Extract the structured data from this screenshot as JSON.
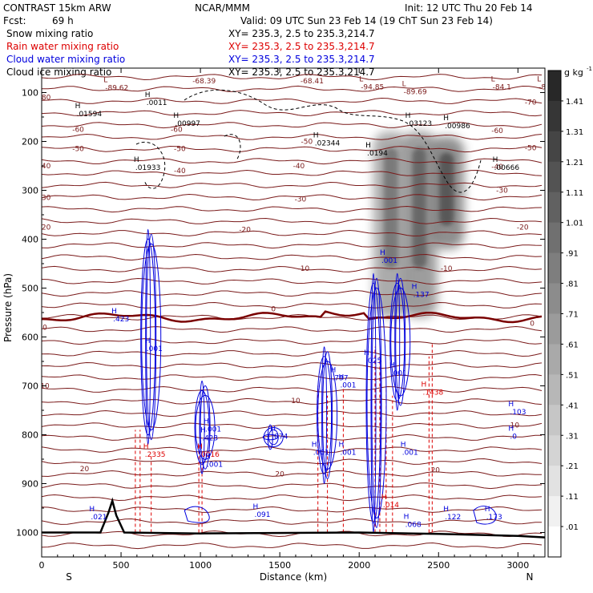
{
  "header": {
    "model": "CONTRAST 15km ARW",
    "org": "NCAR/MMM",
    "init": "Init: 12 UTC Thu 20 Feb 14",
    "fcst_label": "Fcst:",
    "fcst_value": "69 h",
    "valid": "Valid: 09 UTC Sun 23 Feb 14 (19 ChT Sun 23 Feb 14)"
  },
  "legend": [
    {
      "name": "Snow mixing ratio",
      "xy": "XY= 235.3,  2.5 to 235.3,214.7",
      "color": "#000000"
    },
    {
      "name": "Rain water mixing ratio",
      "xy": "XY= 235.3,  2.5 to 235.3,214.7",
      "color": "#dd0000"
    },
    {
      "name": "Cloud water mixing ratio",
      "xy": "XY= 235.3,  2.5 to 235.3,214.7",
      "color": "#0000dd"
    },
    {
      "name": "Cloud ice mixing ratio",
      "xy": "XY= 235.3,  2.5 to 235.3,214.7",
      "color": "#000000"
    }
  ],
  "chart_data": {
    "type": "contour-cross-section",
    "xlabel": "Distance (km)",
    "ylabel": "Pressure (hPa)",
    "xlim": [
      0,
      3170
    ],
    "ylim": [
      1050,
      50
    ],
    "x_ticks": [
      0,
      500,
      1000,
      1500,
      2000,
      2500,
      3000
    ],
    "y_ticks": [
      100,
      200,
      300,
      400,
      500,
      600,
      700,
      800,
      900,
      1000
    ],
    "x_end_labels": {
      "left": "S",
      "right": "N"
    },
    "colorbar": {
      "unit": "g kg",
      "unit_exp": "-1",
      "labels": [
        "1.41",
        "1.31",
        "1.21",
        "1.11",
        "1.01",
        ".91",
        ".81",
        ".71",
        ".61",
        ".51",
        ".41",
        ".31",
        ".21",
        ".11",
        ".01"
      ],
      "levels": [
        1.41,
        1.31,
        1.21,
        1.11,
        1.01,
        0.91,
        0.81,
        0.71,
        0.61,
        0.51,
        0.41,
        0.31,
        0.21,
        0.11,
        0.01
      ]
    },
    "temperature_labels": [
      {
        "t": "-80",
        "x": 20,
        "p": 110
      },
      {
        "t": "-70",
        "x": 3080,
        "p": 120
      },
      {
        "t": "-60",
        "x": 230,
        "p": 175
      },
      {
        "t": "-60",
        "x": 850,
        "p": 175
      },
      {
        "t": "-60",
        "x": 2870,
        "p": 178
      },
      {
        "t": "-50",
        "x": 230,
        "p": 215
      },
      {
        "t": "-50",
        "x": 870,
        "p": 215
      },
      {
        "t": "-50",
        "x": 1670,
        "p": 200
      },
      {
        "t": "-50",
        "x": 3080,
        "p": 213
      },
      {
        "t": "-40",
        "x": 20,
        "p": 250
      },
      {
        "t": "-40",
        "x": 870,
        "p": 260
      },
      {
        "t": "-40",
        "x": 1620,
        "p": 250
      },
      {
        "t": "-40",
        "x": 2870,
        "p": 252
      },
      {
        "t": "-30",
        "x": 20,
        "p": 315
      },
      {
        "t": "-30",
        "x": 1630,
        "p": 318
      },
      {
        "t": "-30",
        "x": 2900,
        "p": 300
      },
      {
        "t": "-20",
        "x": 20,
        "p": 375
      },
      {
        "t": "-20",
        "x": 1280,
        "p": 380
      },
      {
        "t": "-20",
        "x": 3030,
        "p": 375
      },
      {
        "t": "-10",
        "x": 1650,
        "p": 460
      },
      {
        "t": "-10",
        "x": 2550,
        "p": 460
      },
      {
        "t": "0",
        "x": 20,
        "p": 580
      },
      {
        "t": "0",
        "x": 1460,
        "p": 543
      },
      {
        "t": "0",
        "x": 3090,
        "p": 572
      },
      {
        "t": "10",
        "x": 20,
        "p": 700
      },
      {
        "t": "10",
        "x": 1600,
        "p": 730
      },
      {
        "t": "10",
        "x": 2980,
        "p": 780
      },
      {
        "t": "20",
        "x": 270,
        "p": 870
      },
      {
        "t": "20",
        "x": 1500,
        "p": 880
      },
      {
        "t": "20",
        "x": 2480,
        "p": 872
      }
    ],
    "extrema_labels": [
      {
        "kind": "L",
        "value": "-89.62",
        "x": 400,
        "p": 92
      },
      {
        "kind": "",
        "value": "-68.39",
        "x": 950,
        "p": 78
      },
      {
        "kind": "",
        "value": "-68.41",
        "x": 1630,
        "p": 78
      },
      {
        "kind": "L",
        "value": "-94.85",
        "x": 2010,
        "p": 90
      },
      {
        "kind": "L",
        "value": "-89.69",
        "x": 2280,
        "p": 100
      },
      {
        "kind": "L",
        "value": "-84.1",
        "x": 2840,
        "p": 90
      },
      {
        "kind": "L",
        "value": "-84.0",
        "x": 3130,
        "p": 90
      },
      {
        "kind": "H",
        "value": ".0011",
        "x": 660,
        "p": 122
      },
      {
        "kind": "H",
        "value": ".01594",
        "x": 220,
        "p": 145
      },
      {
        "kind": "H",
        "value": ".00997",
        "x": 840,
        "p": 165
      },
      {
        "kind": "H",
        "value": ".03123",
        "x": 2300,
        "p": 165
      },
      {
        "kind": "H",
        "value": ".00986",
        "x": 2540,
        "p": 170
      },
      {
        "kind": "H",
        "value": ".02344",
        "x": 1720,
        "p": 205
      },
      {
        "kind": "H",
        "value": ".0194",
        "x": 2050,
        "p": 225
      },
      {
        "kind": "H",
        "value": ".01933",
        "x": 590,
        "p": 255
      },
      {
        "kind": "H",
        "value": ".00666",
        "x": 2850,
        "p": 255
      },
      {
        "kind": "H",
        "value": ".001",
        "x": 2140,
        "p": 445
      },
      {
        "kind": "H",
        "value": ".137",
        "x": 2340,
        "p": 515
      },
      {
        "kind": "H",
        "value": ".423",
        "x": 450,
        "p": 565
      },
      {
        "kind": "H",
        "value": ".001",
        "x": 660,
        "p": 625
      },
      {
        "kind": "H",
        "value": ".025",
        "x": 2040,
        "p": 650
      },
      {
        "kind": "H",
        "value": ".001",
        "x": 2200,
        "p": 675
      },
      {
        "kind": "H",
        "value": ".797",
        "x": 1830,
        "p": 685
      },
      {
        "kind": "H",
        "value": ".001",
        "x": 1880,
        "p": 700
      },
      {
        "kind": "H",
        "value": ".1438",
        "x": 2400,
        "p": 715
      },
      {
        "kind": "H",
        "value": ".103",
        "x": 2950,
        "p": 755
      },
      {
        "kind": "H",
        "value": ".001",
        "x": 1030,
        "p": 790
      },
      {
        "kind": "H",
        "value": ".423",
        "x": 1010,
        "p": 808
      },
      {
        "kind": "H",
        "value": ".074",
        "x": 1450,
        "p": 805
      },
      {
        "kind": "H",
        "value": ".0",
        "x": 2950,
        "p": 805
      },
      {
        "kind": "H",
        "value": ".001",
        "x": 1710,
        "p": 838
      },
      {
        "kind": "H",
        "value": ".001",
        "x": 1880,
        "p": 838
      },
      {
        "kind": "H",
        "value": ".001",
        "x": 2270,
        "p": 838
      },
      {
        "kind": "H",
        "value": ".2335",
        "x": 650,
        "p": 842
      },
      {
        "kind": "H",
        "value": ".0016",
        "x": 990,
        "p": 842
      },
      {
        "kind": "H",
        "value": ".001",
        "x": 1040,
        "p": 862
      },
      {
        "kind": "H",
        "value": ".014",
        "x": 2150,
        "p": 945
      },
      {
        "kind": "H",
        "value": ".021",
        "x": 310,
        "p": 970
      },
      {
        "kind": "H",
        "value": ".091",
        "x": 1340,
        "p": 965
      },
      {
        "kind": "H",
        "value": ".068",
        "x": 2290,
        "p": 985
      },
      {
        "kind": "H",
        "value": ".122",
        "x": 2540,
        "p": 970
      },
      {
        "kind": "H",
        "value": ".173",
        "x": 2800,
        "p": 970
      }
    ],
    "cloud_water_maxima": [
      {
        "x": 680,
        "p_top": 380,
        "p_bot": 820,
        "value": 0.423
      },
      {
        "x": 1020,
        "p_top": 690,
        "p_bot": 880,
        "value": 0.423
      },
      {
        "x": 1450,
        "p_top": 780,
        "p_bot": 830,
        "value": 0.074
      },
      {
        "x": 1790,
        "p_top": 620,
        "p_bot": 900,
        "value": 0.797
      },
      {
        "x": 2100,
        "p_top": 470,
        "p_bot": 1000,
        "value": 0.025
      },
      {
        "x": 2250,
        "p_top": 470,
        "p_bot": 750,
        "value": 0.137
      }
    ],
    "snow_plumes": [
      {
        "x": 2200,
        "p_top": 180,
        "p_bot": 560,
        "peak": 0.81
      },
      {
        "x": 2380,
        "p_top": 180,
        "p_bot": 560,
        "peak": 0.91
      },
      {
        "x": 2550,
        "p_top": 190,
        "p_bot": 420,
        "peak": 1.01
      }
    ],
    "terrain": [
      {
        "x": 0,
        "p": 1000
      },
      {
        "x": 100,
        "p": 1000
      },
      {
        "x": 370,
        "p": 1000
      },
      {
        "x": 420,
        "p": 960
      },
      {
        "x": 445,
        "p": 935
      },
      {
        "x": 470,
        "p": 965
      },
      {
        "x": 520,
        "p": 1000
      },
      {
        "x": 1000,
        "p": 1002
      },
      {
        "x": 2000,
        "p": 1000
      },
      {
        "x": 2500,
        "p": 1003
      },
      {
        "x": 3000,
        "p": 1007
      },
      {
        "x": 3170,
        "p": 1010
      }
    ]
  }
}
